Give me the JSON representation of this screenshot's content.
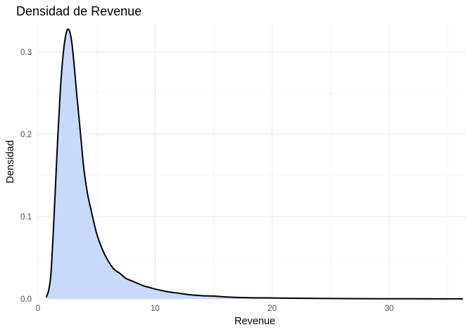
{
  "chart_data": {
    "type": "area",
    "title": "Densidad de Revenue",
    "xlabel": "Revenue",
    "ylabel": "Densidad",
    "xlim": [
      0,
      36.5
    ],
    "ylim": [
      0,
      0.335
    ],
    "x_ticks": [
      0,
      10,
      20,
      30
    ],
    "x_tick_labels": [
      "0",
      "10",
      "20",
      "30"
    ],
    "x_minor_ticks": [
      5,
      15,
      25,
      35
    ],
    "y_ticks": [
      0,
      0.1,
      0.2,
      0.3
    ],
    "y_tick_labels": [
      "0.0",
      "0.1",
      "0.2",
      "0.3"
    ],
    "y_minor_ticks": [
      0.05,
      0.15,
      0.25
    ],
    "grid": true,
    "legend": "none",
    "fill_color": "#c6dafb",
    "line_color": "#000000",
    "series": [
      {
        "x": [
          0.7,
          0.9,
          1.1,
          1.3,
          1.5,
          1.7,
          1.9,
          2.1,
          2.3,
          2.5,
          2.7,
          2.9,
          3.1,
          3.3,
          3.5,
          3.7,
          3.9,
          4.2,
          4.5,
          5.0,
          5.5,
          6.0,
          6.5,
          7.0,
          7.5,
          8.0,
          8.5,
          9.0,
          9.5,
          10.0,
          11.0,
          12.0,
          13.0,
          14.0,
          15.0,
          16.0,
          18.0,
          20.0,
          22.0,
          25.0,
          28.0,
          31.0,
          34.0,
          36.3
        ],
        "y": [
          0.002,
          0.01,
          0.03,
          0.08,
          0.14,
          0.2,
          0.252,
          0.29,
          0.315,
          0.327,
          0.325,
          0.31,
          0.282,
          0.25,
          0.22,
          0.19,
          0.16,
          0.13,
          0.11,
          0.08,
          0.06,
          0.046,
          0.036,
          0.031,
          0.025,
          0.022,
          0.019,
          0.016,
          0.014,
          0.012,
          0.009,
          0.007,
          0.005,
          0.004,
          0.0035,
          0.0025,
          0.0015,
          0.0012,
          0.0008,
          0.0005,
          0.0003,
          0.0002,
          0.0001,
          0.0001
        ]
      }
    ]
  }
}
